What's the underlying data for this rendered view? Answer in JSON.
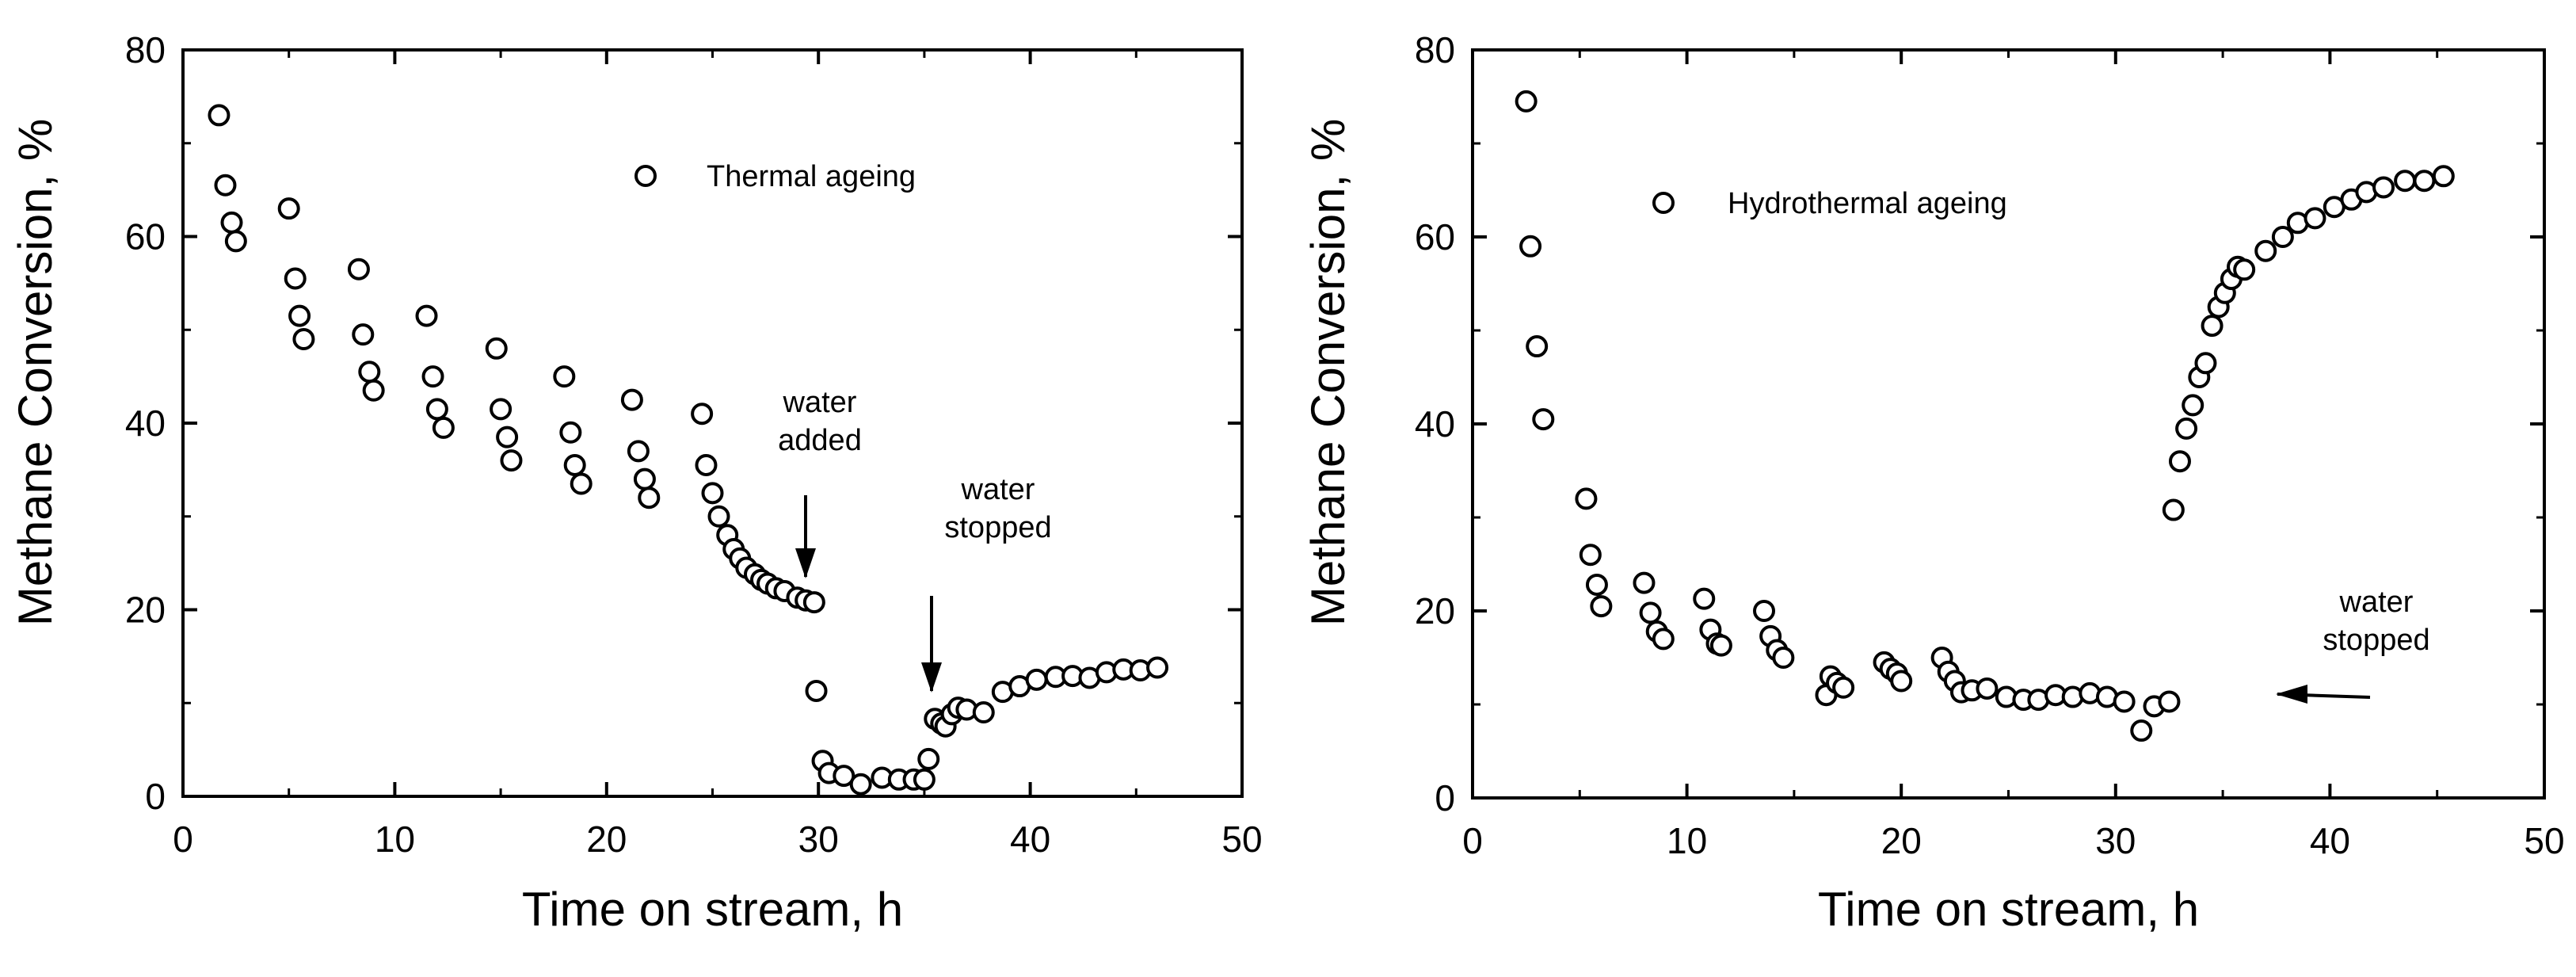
{
  "chart_data": [
    {
      "type": "scatter",
      "title": "",
      "xlabel": "Time on stream, h",
      "ylabel": "Methane Conversion, %",
      "xlim": [
        0,
        50
      ],
      "ylim": [
        0,
        80
      ],
      "xticks": [
        0,
        10,
        20,
        30,
        40,
        50
      ],
      "yticks": [
        0,
        20,
        40,
        60,
        80
      ],
      "grid": false,
      "legend": {
        "position": "top-center",
        "label": "Thermal ageing"
      },
      "series": [
        {
          "name": "Thermal ageing",
          "marker": "open-circle",
          "points": [
            [
              1.7,
              73
            ],
            [
              2.0,
              65.5
            ],
            [
              2.3,
              61.5
            ],
            [
              2.5,
              59.5
            ],
            [
              5.0,
              63
            ],
            [
              5.3,
              55.5
            ],
            [
              5.5,
              51.5
            ],
            [
              5.7,
              49
            ],
            [
              8.3,
              56.5
            ],
            [
              8.5,
              49.5
            ],
            [
              8.8,
              45.5
            ],
            [
              9.0,
              43.5
            ],
            [
              11.5,
              51.5
            ],
            [
              11.8,
              45
            ],
            [
              12.0,
              41.5
            ],
            [
              12.3,
              39.5
            ],
            [
              14.8,
              48
            ],
            [
              15.0,
              41.5
            ],
            [
              15.3,
              38.5
            ],
            [
              15.5,
              36
            ],
            [
              18.0,
              45
            ],
            [
              18.3,
              39
            ],
            [
              18.5,
              35.5
            ],
            [
              18.8,
              33.5
            ],
            [
              21.2,
              42.5
            ],
            [
              21.5,
              37
            ],
            [
              21.8,
              34
            ],
            [
              22.0,
              32
            ],
            [
              24.5,
              41
            ],
            [
              24.7,
              35.5
            ],
            [
              25.0,
              32.5
            ],
            [
              25.3,
              30
            ],
            [
              25.7,
              28
            ],
            [
              26.0,
              26.5
            ],
            [
              26.3,
              25.5
            ],
            [
              26.6,
              24.5
            ],
            [
              27.0,
              23.8
            ],
            [
              27.3,
              23.2
            ],
            [
              27.6,
              22.8
            ],
            [
              28.0,
              22.3
            ],
            [
              28.4,
              22
            ],
            [
              29.0,
              21.3
            ],
            [
              29.4,
              21
            ],
            [
              29.8,
              20.8
            ],
            [
              29.9,
              11.3
            ],
            [
              30.2,
              3.8
            ],
            [
              30.5,
              2.5
            ],
            [
              31.2,
              2.2
            ],
            [
              32.0,
              1.3
            ],
            [
              33.0,
              2
            ],
            [
              33.8,
              1.8
            ],
            [
              34.5,
              1.8
            ],
            [
              35.0,
              1.8
            ],
            [
              35.2,
              4
            ],
            [
              35.5,
              8.3
            ],
            [
              35.8,
              7.8
            ],
            [
              36.0,
              7.5
            ],
            [
              36.3,
              8.8
            ],
            [
              36.6,
              9.5
            ],
            [
              37.0,
              9.3
            ],
            [
              37.8,
              9
            ],
            [
              38.7,
              11.2
            ],
            [
              39.5,
              11.8
            ],
            [
              40.3,
              12.5
            ],
            [
              41.2,
              12.8
            ],
            [
              42.0,
              12.9
            ],
            [
              42.8,
              12.7
            ],
            [
              43.6,
              13.3
            ],
            [
              44.4,
              13.6
            ],
            [
              45.2,
              13.5
            ],
            [
              46.0,
              13.8
            ]
          ]
        }
      ],
      "annotations": [
        {
          "lines": [
            "water",
            "added"
          ],
          "arrow": "down",
          "target_x": 29.7,
          "target_y": 20.8
        },
        {
          "lines": [
            "water",
            "stopped"
          ],
          "arrow": "down",
          "target_x": 35.5,
          "target_y": 8.3
        }
      ]
    },
    {
      "type": "scatter",
      "title": "",
      "xlabel": "Time on stream, h",
      "ylabel": "Methane Conversion, %",
      "xlim": [
        0,
        50
      ],
      "ylim": [
        0,
        80
      ],
      "xticks": [
        0,
        10,
        20,
        30,
        40,
        50
      ],
      "yticks": [
        0,
        20,
        40,
        60,
        80
      ],
      "grid": false,
      "legend": {
        "position": "top-left",
        "label": "Hydrothermal ageing"
      },
      "series": [
        {
          "name": "Hydrothermal ageing",
          "marker": "open-circle",
          "points": [
            [
              2.5,
              74.5
            ],
            [
              2.7,
              59
            ],
            [
              3.0,
              48.3
            ],
            [
              3.3,
              40.5
            ],
            [
              5.3,
              32
            ],
            [
              5.5,
              26
            ],
            [
              5.8,
              22.8
            ],
            [
              6.0,
              20.5
            ],
            [
              8.0,
              23
            ],
            [
              8.3,
              19.8
            ],
            [
              8.6,
              17.8
            ],
            [
              8.9,
              17
            ],
            [
              10.8,
              21.3
            ],
            [
              11.1,
              18
            ],
            [
              11.4,
              16.5
            ],
            [
              11.6,
              16.3
            ],
            [
              13.6,
              20
            ],
            [
              13.9,
              17.3
            ],
            [
              14.2,
              15.8
            ],
            [
              14.5,
              15
            ],
            [
              16.5,
              11
            ],
            [
              16.7,
              13
            ],
            [
              17.0,
              12.3
            ],
            [
              17.3,
              11.8
            ],
            [
              19.2,
              14.5
            ],
            [
              19.5,
              13.8
            ],
            [
              19.8,
              13.3
            ],
            [
              20.0,
              12.5
            ],
            [
              21.9,
              15
            ],
            [
              22.2,
              13.5
            ],
            [
              22.5,
              12.5
            ],
            [
              22.8,
              11.3
            ],
            [
              23.3,
              11.5
            ],
            [
              24.0,
              11.7
            ],
            [
              24.9,
              10.8
            ],
            [
              25.7,
              10.5
            ],
            [
              26.4,
              10.5
            ],
            [
              27.2,
              11
            ],
            [
              28.0,
              10.8
            ],
            [
              28.8,
              11.2
            ],
            [
              29.6,
              10.8
            ],
            [
              30.4,
              10.3
            ],
            [
              31.2,
              7.2
            ],
            [
              31.8,
              9.8
            ],
            [
              32.5,
              10.3
            ],
            [
              32.7,
              30.8
            ],
            [
              33.0,
              36
            ],
            [
              33.3,
              39.5
            ],
            [
              33.6,
              42
            ],
            [
              33.9,
              45
            ],
            [
              34.2,
              46.5
            ],
            [
              34.5,
              50.5
            ],
            [
              34.8,
              52.5
            ],
            [
              35.1,
              54
            ],
            [
              35.4,
              55.5
            ],
            [
              35.7,
              56.8
            ],
            [
              36.0,
              56.5
            ],
            [
              37.0,
              58.5
            ],
            [
              37.8,
              60
            ],
            [
              38.5,
              61.5
            ],
            [
              39.3,
              62
            ],
            [
              40.2,
              63.2
            ],
            [
              41.0,
              64
            ],
            [
              41.7,
              64.8
            ],
            [
              42.5,
              65.3
            ],
            [
              43.5,
              66
            ],
            [
              44.4,
              66
            ],
            [
              45.3,
              66.5
            ]
          ]
        }
      ],
      "annotations": [
        {
          "lines": [
            "water",
            "stopped"
          ],
          "arrow": "left",
          "target_x": 33.0,
          "target_y": 11.3
        }
      ]
    }
  ]
}
